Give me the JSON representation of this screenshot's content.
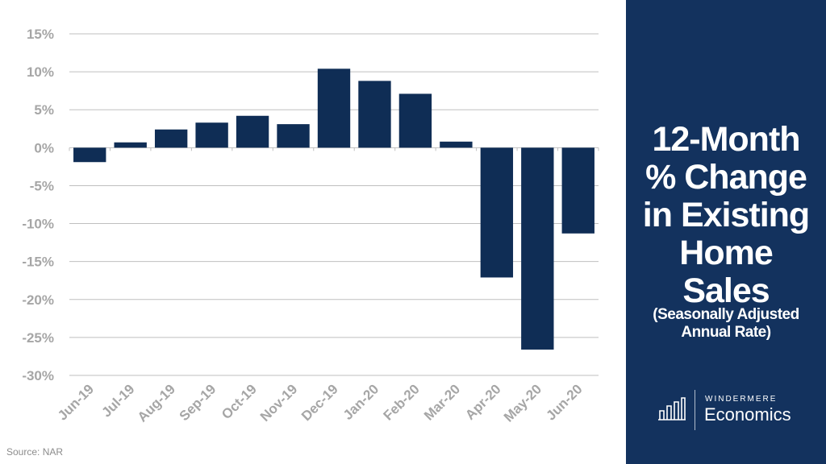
{
  "chart_data": {
    "type": "bar",
    "categories": [
      "Jun-19",
      "Jul-19",
      "Aug-19",
      "Sep-19",
      "Oct-19",
      "Nov-19",
      "Dec-19",
      "Jan-20",
      "Feb-20",
      "Mar-20",
      "Apr-20",
      "May-20",
      "Jun-20"
    ],
    "values": [
      -1.9,
      0.7,
      2.4,
      3.3,
      4.2,
      3.1,
      10.4,
      8.8,
      7.1,
      0.8,
      -17.1,
      -26.6,
      -11.3
    ],
    "y_ticks": [
      "15%",
      "10%",
      "5%",
      "0%",
      "-5%",
      "-10%",
      "-15%",
      "-20%",
      "-25%",
      "-30%"
    ],
    "ylim": [
      -30,
      15
    ],
    "grid": true,
    "bar_color": "#0f2d55"
  },
  "panel": {
    "title_lines": [
      "12-Month",
      "% Change",
      "in Existing",
      "Home",
      "Sales"
    ],
    "subtitle_lines": [
      "(Seasonally Adjusted",
      "Annual Rate)"
    ],
    "background": "#13325e"
  },
  "logo": {
    "top_text": "WINDERMERE",
    "bottom_text": "Economics",
    "icon": "bar-chart-icon"
  },
  "source": "Source: NAR"
}
